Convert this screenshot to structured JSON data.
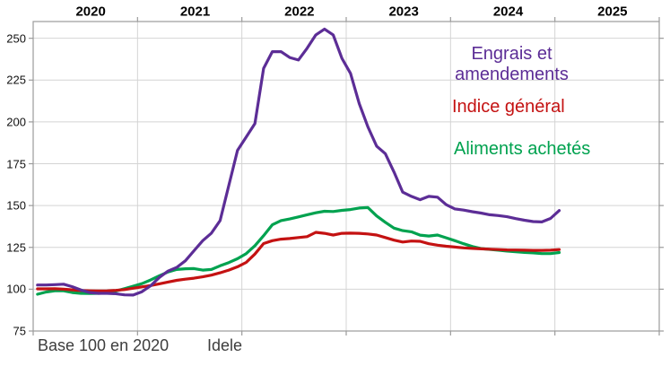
{
  "chart_data": {
    "type": "line",
    "title": "",
    "x_axis": {
      "unit": "month",
      "start": "2020-01",
      "end": "2025-01",
      "year_labels": [
        "2020",
        "2021",
        "2022",
        "2023",
        "2024",
        "2025"
      ]
    },
    "y_axis": {
      "ticks": [
        75,
        100,
        125,
        150,
        175,
        200,
        225,
        250
      ],
      "range": [
        75,
        260
      ]
    },
    "grid": true,
    "legend_position": "top-right-inside",
    "axis_color": "#9b9b9b",
    "grid_color": "#d4d4d4",
    "label_color": "#000000",
    "footnote_color": "#3d3d3d",
    "series": [
      {
        "name": "Engrais et amendements",
        "color": "#5C2D96",
        "values": [
          102.5,
          102.5,
          102.7,
          103,
          101.5,
          99.5,
          98,
          97.5,
          97.5,
          97.3,
          96.6,
          96.5,
          98.5,
          102,
          107,
          110.8,
          113,
          117,
          123,
          129,
          133.5,
          141,
          162,
          183,
          191,
          199,
          232,
          242,
          242,
          238.5,
          237,
          244,
          252,
          255.5,
          252,
          238,
          229,
          211,
          197,
          185.5,
          181,
          170,
          158,
          155.5,
          153.5,
          155.5,
          155,
          150.5,
          148,
          147.3,
          146.3,
          145.5,
          144.5,
          144,
          143.3,
          142.2,
          141.2,
          140.4,
          140.2,
          142.3,
          147
        ]
      },
      {
        "name": "Indice général",
        "color": "#C41212",
        "values": [
          100.2,
          100.2,
          100.3,
          100,
          99.6,
          99.2,
          99,
          98.9,
          99,
          99.3,
          99.8,
          100.6,
          101.4,
          102.2,
          103.2,
          104.3,
          105.3,
          106,
          106.6,
          107.4,
          108.4,
          109.8,
          111.4,
          113.4,
          116,
          121,
          127.3,
          129,
          129.9,
          130.3,
          130.9,
          131.4,
          134,
          133.4,
          132.4,
          133.4,
          133.5,
          133.4,
          133,
          132.4,
          130.9,
          129.3,
          128.2,
          128.8,
          128.6,
          127.2,
          126.3,
          125.7,
          125.2,
          124.7,
          124.4,
          124.1,
          123.9,
          123.7,
          123.5,
          123.4,
          123.3,
          123.2,
          123.2,
          123.3,
          123.7
        ]
      },
      {
        "name": "Aliments achetés",
        "color": "#00A24F",
        "values": [
          97,
          98.3,
          99,
          99,
          98,
          97.5,
          97.4,
          97.5,
          97.7,
          98.9,
          100.3,
          101.8,
          103.3,
          105.5,
          108,
          110.3,
          111.8,
          112.2,
          112.3,
          111.4,
          111.8,
          114,
          115.9,
          118.2,
          121.3,
          126,
          132,
          138.5,
          141,
          142,
          143.2,
          144.5,
          145.7,
          146.6,
          146.4,
          147.1,
          147.6,
          148.5,
          148.8,
          143.8,
          140,
          136.5,
          135,
          134.3,
          132.3,
          131.8,
          132.4,
          130.7,
          129,
          127.2,
          125.5,
          124.3,
          123.8,
          123.3,
          122.8,
          122.4,
          122,
          121.7,
          121.3,
          121.3,
          121.9
        ]
      }
    ],
    "footnotes": [
      "Base 100 en 2020",
      "Idele"
    ]
  }
}
